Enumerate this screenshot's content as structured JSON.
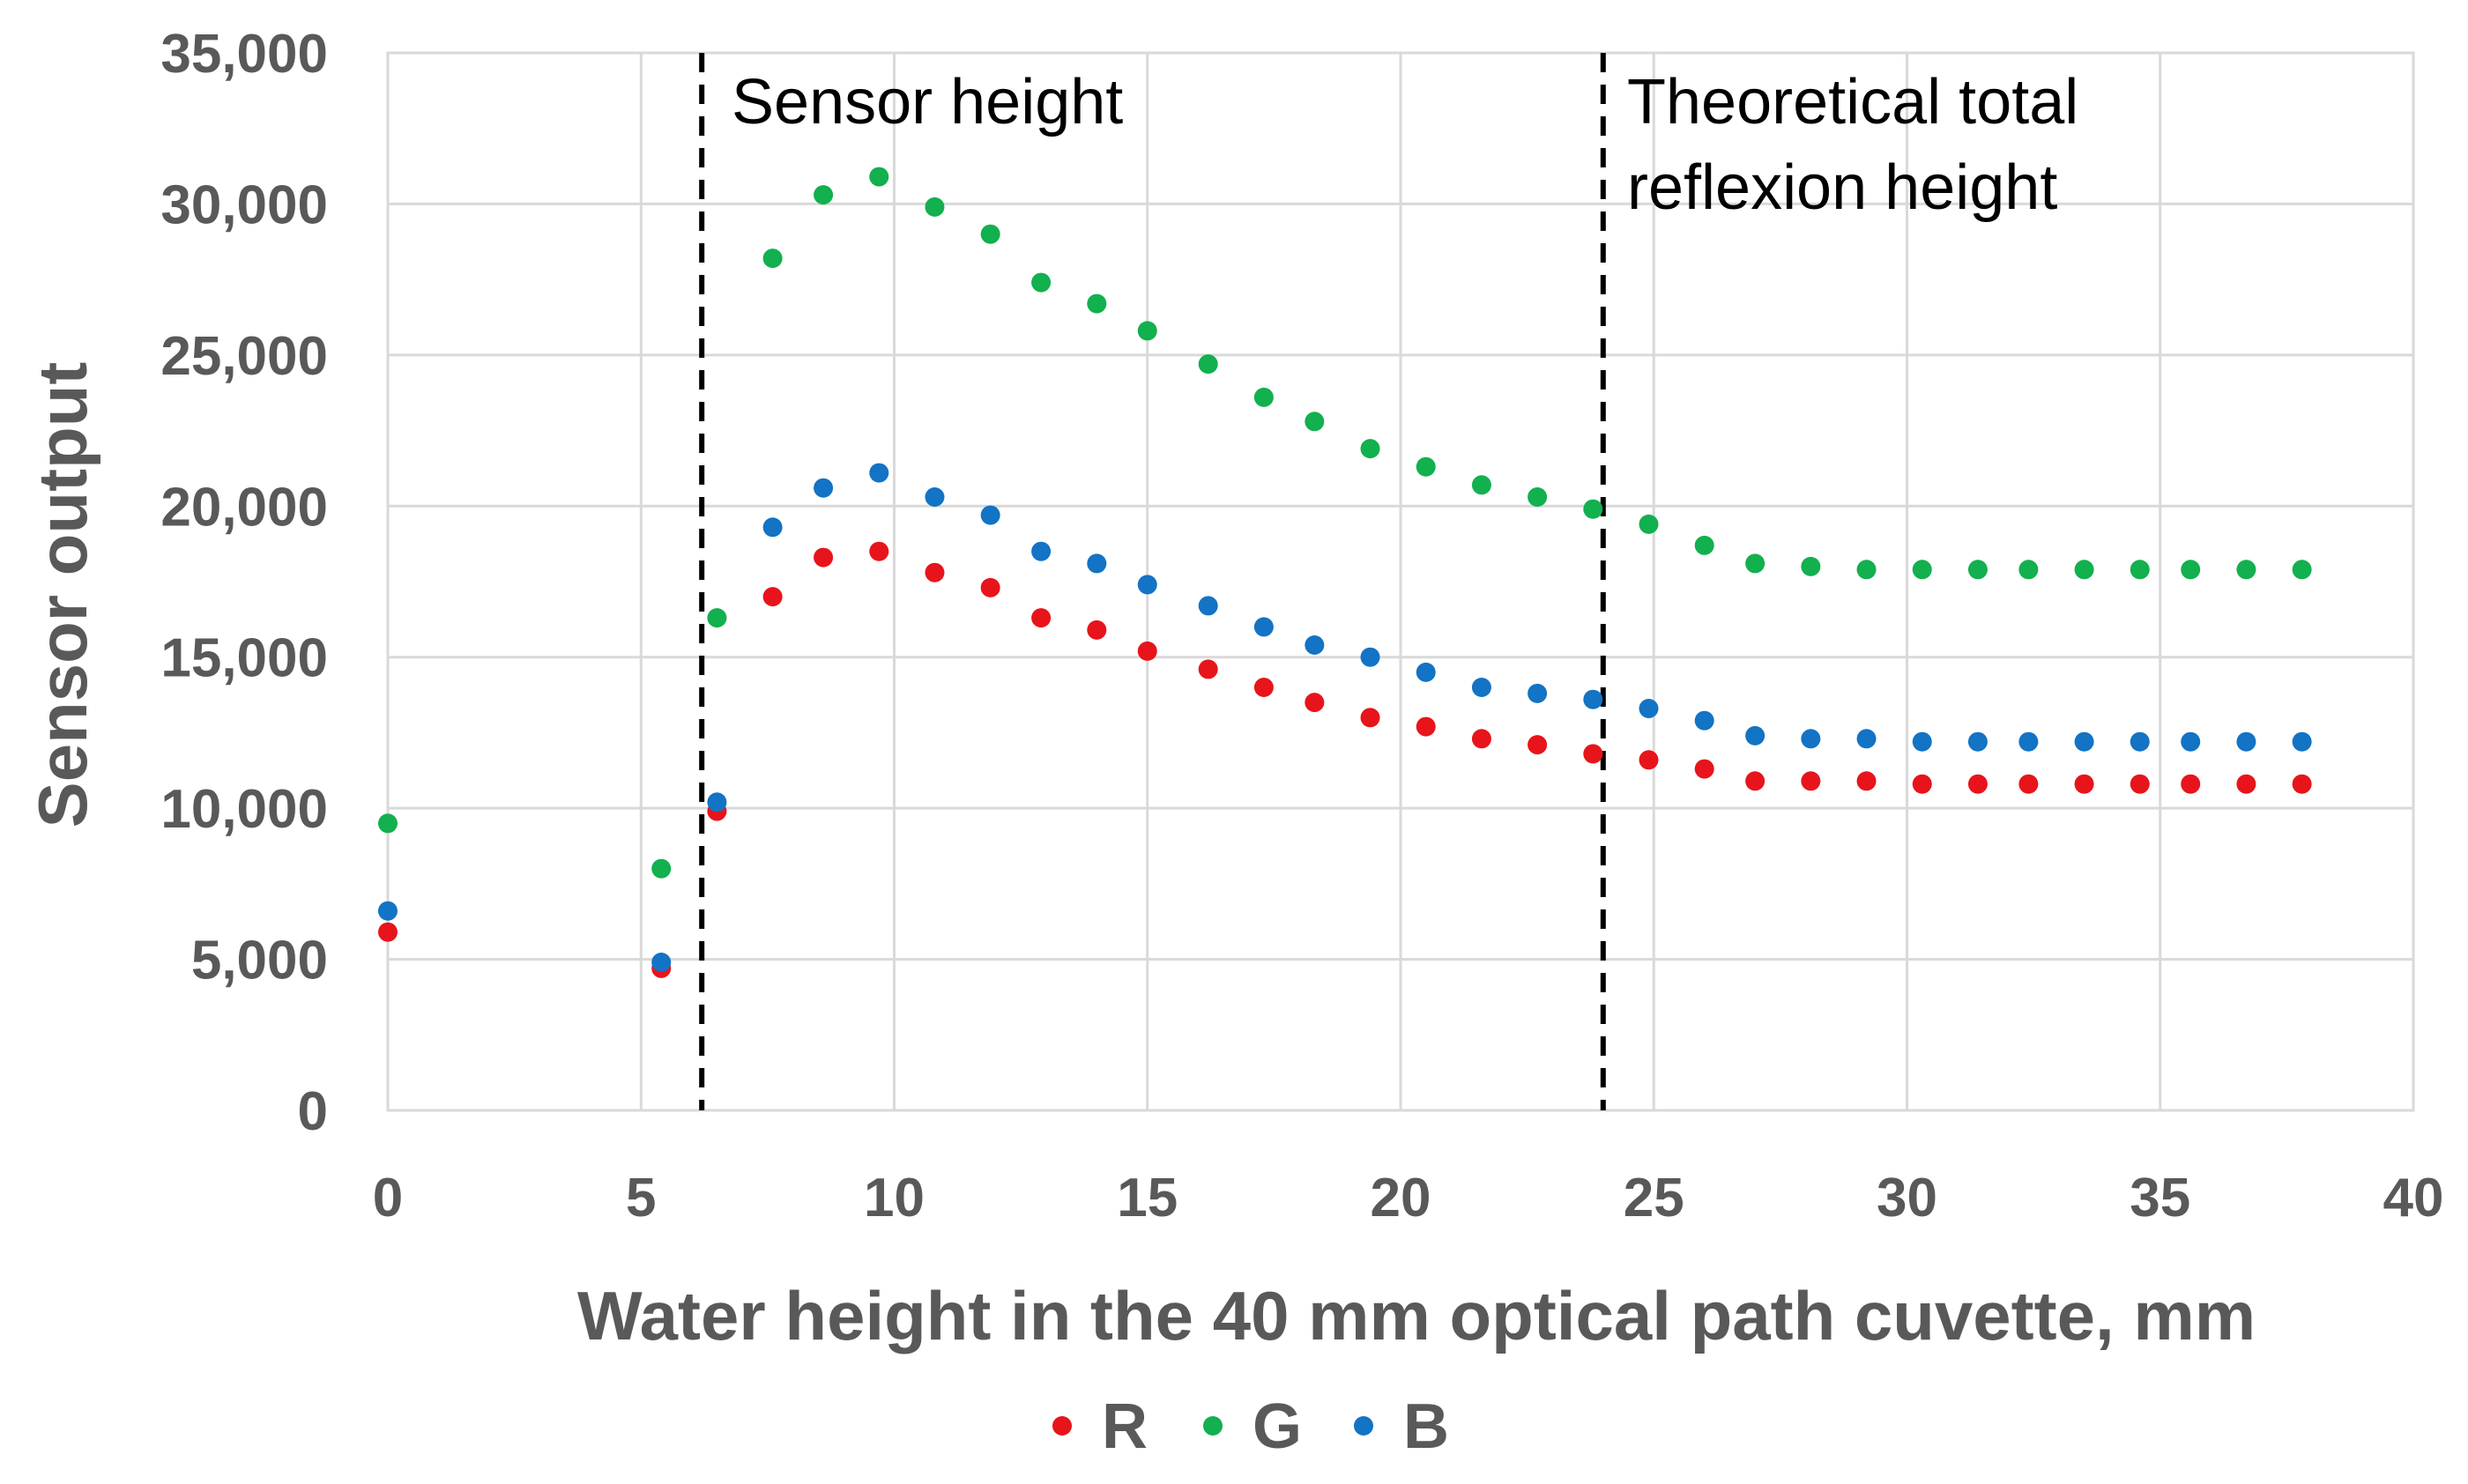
{
  "chart_data": {
    "type": "scatter",
    "title": "",
    "xlabel": "Water height in the 40 mm optical path cuvette, mm",
    "ylabel": "Sensor output",
    "xlim": [
      0,
      40
    ],
    "ylim": [
      0,
      35000
    ],
    "x_ticks": [
      0,
      5,
      10,
      15,
      20,
      25,
      30,
      35,
      40
    ],
    "y_ticks": [
      0,
      5000,
      10000,
      15000,
      20000,
      25000,
      30000,
      35000
    ],
    "x_tick_labels": [
      "0",
      "5",
      "10",
      "15",
      "20",
      "25",
      "30",
      "35",
      "40"
    ],
    "y_tick_labels": [
      "0",
      "5,000",
      "10,000",
      "15,000",
      "20,000",
      "25,000",
      "30,000",
      "35,000"
    ],
    "grid": true,
    "legend_position": "bottom",
    "x": [
      0,
      5.4,
      6.5,
      7.6,
      8.6,
      9.7,
      10.8,
      11.9,
      12.9,
      14.0,
      15.0,
      16.2,
      17.3,
      18.3,
      19.4,
      20.5,
      21.6,
      22.7,
      23.8,
      24.9,
      26.0,
      27.0,
      28.1,
      29.2,
      30.3,
      31.4,
      32.4,
      33.5,
      34.6,
      35.6,
      36.7,
      37.8
    ],
    "series": [
      {
        "name": "R",
        "color": "#e8141b",
        "values": [
          5900,
          4700,
          9900,
          17000,
          18300,
          18500,
          17800,
          17300,
          16300,
          15900,
          15200,
          14600,
          14000,
          13500,
          13000,
          12700,
          12300,
          12100,
          11800,
          11600,
          11300,
          10900,
          10900,
          10900,
          10800,
          10800,
          10800,
          10800,
          10800,
          10800,
          10800,
          10800
        ]
      },
      {
        "name": "G",
        "color": "#12b04e",
        "values": [
          9500,
          8000,
          16300,
          28200,
          30300,
          30900,
          29900,
          29000,
          27400,
          26700,
          25800,
          24700,
          23600,
          22800,
          21900,
          21300,
          20700,
          20300,
          19900,
          19400,
          18700,
          18100,
          18000,
          17900,
          17900,
          17900,
          17900,
          17900,
          17900,
          17900,
          17900,
          17900
        ]
      },
      {
        "name": "B",
        "color": "#1373c4",
        "values": [
          6600,
          4900,
          10200,
          19300,
          20600,
          21100,
          20300,
          19700,
          18500,
          18100,
          17400,
          16700,
          16000,
          15400,
          15000,
          14500,
          14000,
          13800,
          13600,
          13300,
          12900,
          12400,
          12300,
          12300,
          12200,
          12200,
          12200,
          12200,
          12200,
          12200,
          12200,
          12200
        ]
      }
    ],
    "reference_lines": [
      {
        "x": 6.2,
        "label": "Sensor height"
      },
      {
        "x": 24.0,
        "label": "Theoretical total reflexion height"
      }
    ],
    "annotations": {
      "sensor_height": "Sensor height",
      "total_reflexion_line1": "Theoretical total",
      "total_reflexion_line2": "reflexion height"
    }
  }
}
